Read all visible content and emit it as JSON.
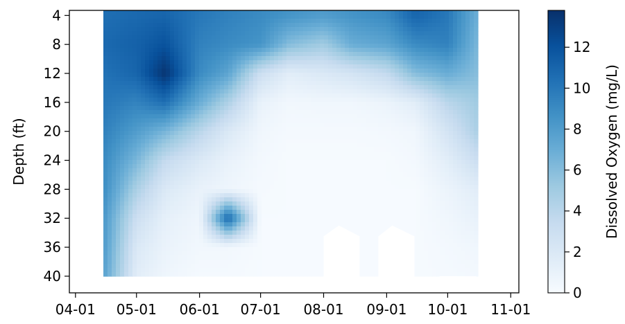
{
  "chart_data": {
    "type": "heatmap",
    "title": "",
    "xlabel": "",
    "ylabel": "Depth (ft)",
    "x_tick_labels": [
      "04-01",
      "05-01",
      "06-01",
      "07-01",
      "08-01",
      "09-01",
      "10-01",
      "11-01"
    ],
    "y_tick_values": [
      4,
      8,
      12,
      16,
      20,
      24,
      28,
      32,
      36,
      40
    ],
    "y_tick_labels": [
      "4",
      "8",
      "12",
      "16",
      "20",
      "24",
      "28",
      "32",
      "36",
      "40"
    ],
    "ylim": [
      42.3,
      3.3
    ],
    "colorbar": {
      "label": "Dissolved Oxygen (mg/L)",
      "range": [
        0,
        13.8
      ],
      "ticks": [
        0,
        2,
        4,
        6,
        8,
        10,
        12
      ],
      "tick_labels": [
        "0",
        "2",
        "4",
        "6",
        "8",
        "10",
        "12"
      ],
      "colormap": [
        "#f7fbff",
        "#deebf7",
        "#c6dbef",
        "#9ecae1",
        "#6baed6",
        "#4292c6",
        "#2171b5",
        "#08519c",
        "#08306b"
      ]
    },
    "profile_dates": [
      "04-15",
      "05-01",
      "05-15",
      "06-01",
      "06-15",
      "07-01",
      "07-15",
      "08-01",
      "08-15",
      "09-01",
      "09-15",
      "10-01",
      "10-15"
    ],
    "profile_depths": [
      4,
      8,
      12,
      16,
      20,
      24,
      28,
      32,
      36,
      40
    ],
    "dissolved_oxygen": [
      [
        10.5,
        10.8,
        10.3,
        10.0,
        9.5,
        9.0,
        8.8,
        8.2,
        8.0,
        7.6
      ],
      [
        10.8,
        11.2,
        11.0,
        9.4,
        8.0,
        6.4,
        4.6,
        3.0,
        2.0,
        1.5
      ],
      [
        11.0,
        12.0,
        13.6,
        10.5,
        6.5,
        3.5,
        2.0,
        1.2,
        0.9,
        0.6
      ],
      [
        10.0,
        9.5,
        9.0,
        7.0,
        4.0,
        2.0,
        1.0,
        0.6,
        0.4,
        0.2
      ],
      [
        9.5,
        9.0,
        7.5,
        4.5,
        2.0,
        1.0,
        0.6,
        11.0,
        0.4,
        0.2
      ],
      [
        9.0,
        8.5,
        3.0,
        1.0,
        0.5,
        0.3,
        0.2,
        0.1,
        0.1,
        0.1
      ],
      [
        8.5,
        6.0,
        1.5,
        0.4,
        0.2,
        0.1,
        0.1,
        0.1,
        0.1,
        0.1
      ],
      [
        8.0,
        5.0,
        2.0,
        0.5,
        0.2,
        0.1,
        0.1,
        0.1,
        0.1,
        0.1
      ],
      [
        8.5,
        7.0,
        2.5,
        0.5,
        0.2,
        0.1,
        0.1,
        0.1,
        0.1,
        0.1
      ],
      [
        9.0,
        7.5,
        3.5,
        0.8,
        0.3,
        0.1,
        0.1,
        0.1,
        0.1,
        0.1
      ],
      [
        11.0,
        9.0,
        6.0,
        1.5,
        0.5,
        0.3,
        0.1,
        0.1,
        0.1,
        0.1
      ],
      [
        10.0,
        9.5,
        7.0,
        4.0,
        2.5,
        1.5,
        0.8,
        0.5,
        0.3,
        0.2
      ],
      [
        7.0,
        6.5,
        6.0,
        5.0,
        4.5,
        3.0,
        1.5,
        1.0,
        0.5,
        0.3
      ]
    ]
  }
}
